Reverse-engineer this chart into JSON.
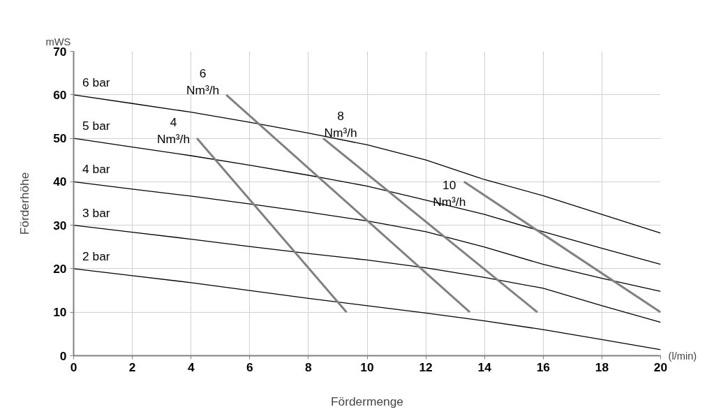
{
  "chart_data": {
    "type": "line",
    "xlabel": "Fördermenge",
    "ylabel": "Förderhöhe",
    "x": [
      0,
      2,
      4,
      6,
      8,
      10,
      12,
      14,
      16,
      18,
      20
    ],
    "xlim": [
      0,
      20
    ],
    "xticks": [
      0,
      2,
      4,
      6,
      8,
      10,
      12,
      14,
      16,
      18,
      20
    ],
    "ylim": [
      0,
      70
    ],
    "yticks": [
      0,
      10,
      20,
      30,
      40,
      50,
      60,
      70
    ],
    "grid": true,
    "marker": "none",
    "line_style": "solid",
    "series": [
      {
        "name": "6 bar",
        "color": "#000000",
        "values": [
          60,
          58,
          56,
          53.7,
          51.2,
          48.5,
          45,
          40.5,
          36.8,
          32.5,
          28.2
        ]
      },
      {
        "name": "5 bar",
        "color": "#000000",
        "values": [
          50,
          48,
          46,
          43.8,
          41.5,
          39,
          35.8,
          32.5,
          28.5,
          24.7,
          21
        ]
      },
      {
        "name": "4 bar",
        "color": "#000000",
        "values": [
          40,
          38.3,
          36.7,
          34.9,
          33,
          31,
          28.5,
          25,
          21,
          17.8,
          14.8
        ]
      },
      {
        "name": "3 bar",
        "color": "#000000",
        "values": [
          30,
          28.4,
          26.8,
          25.1,
          23.5,
          22,
          20.2,
          18,
          15.5,
          11.5,
          7.7
        ]
      },
      {
        "name": "2 bar",
        "color": "#000000",
        "values": [
          20,
          18.4,
          16.8,
          15,
          13.2,
          11.5,
          9.8,
          8,
          6,
          3.7,
          1.4
        ]
      },
      {
        "name": "4 Nm³/h",
        "color": "#808080",
        "x": [
          4.2,
          9.3
        ],
        "values": [
          50,
          10
        ]
      },
      {
        "name": "6 Nm³/h",
        "color": "#808080",
        "x": [
          5.2,
          13.5
        ],
        "values": [
          60,
          10
        ]
      },
      {
        "name": "8 Nm³/h",
        "color": "#808080",
        "x": [
          8.5,
          15.8
        ],
        "values": [
          50,
          10
        ]
      },
      {
        "name": "10 Nm³/h",
        "color": "#808080",
        "x": [
          13.3,
          20
        ],
        "values": [
          40,
          10
        ]
      }
    ],
    "annotations": [
      "mWS",
      "(l/min)"
    ]
  }
}
